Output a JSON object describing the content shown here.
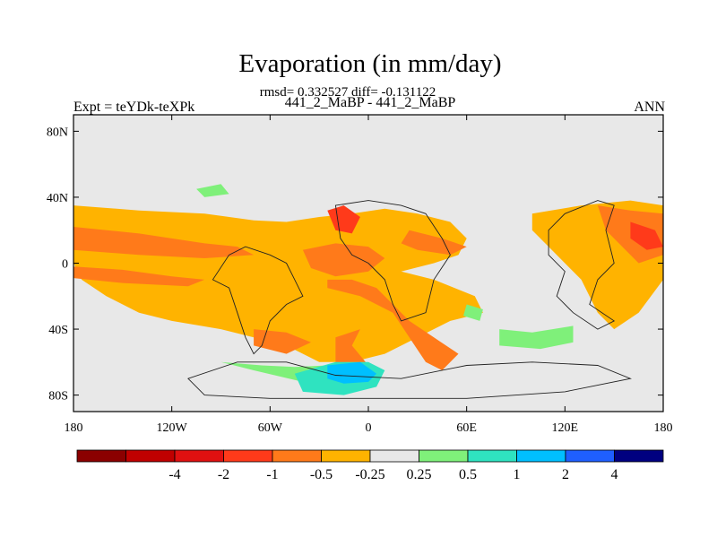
{
  "header": {
    "title": "Evaporation (in mm/day)",
    "stats": "rmsd= 0.332527 diff= -0.131122",
    "cases": "441_2_MaBP - 441_2_MaBP",
    "expt": "Expt = teYDk-teXPk",
    "season": "ANN"
  },
  "chart_data": {
    "type": "heatmap",
    "title": "Evaporation (in mm/day)",
    "xlim": [
      -180,
      180
    ],
    "ylim": [
      -90,
      90
    ],
    "x_ticks": [
      {
        "value": -180,
        "label": "180"
      },
      {
        "value": -120,
        "label": "120W"
      },
      {
        "value": -60,
        "label": "60W"
      },
      {
        "value": 0,
        "label": "0"
      },
      {
        "value": 60,
        "label": "60E"
      },
      {
        "value": 120,
        "label": "120E"
      },
      {
        "value": 180,
        "label": "180"
      }
    ],
    "y_ticks": [
      {
        "value": 80,
        "label": "80N"
      },
      {
        "value": 40,
        "label": "40N"
      },
      {
        "value": 0,
        "label": "0"
      },
      {
        "value": -40,
        "label": "40S"
      },
      {
        "value": -80,
        "label": "80S"
      }
    ],
    "colorbar": {
      "colors": [
        "#8b0000",
        "#c00000",
        "#e01010",
        "#ff3a1a",
        "#ff7a1a",
        "#ffb300",
        "#e8e8e8",
        "#7ff07a",
        "#2fe3c0",
        "#00bfff",
        "#1f5fff",
        "#000080"
      ],
      "labels": [
        "-4",
        "-2",
        "-1",
        "-0.5",
        "-0.25",
        "0.25",
        "0.5",
        "1",
        "2",
        "4"
      ]
    },
    "regions": [
      {
        "level": "-0.25",
        "color": "#ffb300",
        "points": [
          [
            -180,
            35
          ],
          [
            -140,
            32
          ],
          [
            -100,
            30
          ],
          [
            -70,
            26
          ],
          [
            -50,
            25
          ],
          [
            -30,
            28
          ],
          [
            -10,
            30
          ],
          [
            10,
            33
          ],
          [
            30,
            30
          ],
          [
            50,
            25
          ],
          [
            60,
            15
          ],
          [
            55,
            5
          ],
          [
            40,
            0
          ],
          [
            20,
            -5
          ],
          [
            40,
            -10
          ],
          [
            65,
            -20
          ],
          [
            70,
            -30
          ],
          [
            50,
            -35
          ],
          [
            30,
            -45
          ],
          [
            10,
            -55
          ],
          [
            -10,
            -60
          ],
          [
            -30,
            -60
          ],
          [
            -50,
            -50
          ],
          [
            -70,
            -45
          ],
          [
            -90,
            -40
          ],
          [
            -120,
            -35
          ],
          [
            -140,
            -30
          ],
          [
            -160,
            -20
          ],
          [
            -175,
            -10
          ],
          [
            -180,
            0
          ]
        ]
      },
      {
        "level": "-0.25",
        "color": "#ffb300",
        "points": [
          [
            100,
            30
          ],
          [
            130,
            35
          ],
          [
            160,
            38
          ],
          [
            180,
            35
          ],
          [
            180,
            -10
          ],
          [
            165,
            -30
          ],
          [
            150,
            -40
          ],
          [
            140,
            -30
          ],
          [
            130,
            -10
          ],
          [
            120,
            0
          ],
          [
            110,
            10
          ],
          [
            100,
            20
          ]
        ]
      },
      {
        "level": "-0.5",
        "color": "#ff7a1a",
        "points": [
          [
            -180,
            22
          ],
          [
            -140,
            18
          ],
          [
            -100,
            12
          ],
          [
            -80,
            10
          ],
          [
            -70,
            5
          ],
          [
            -100,
            3
          ],
          [
            -140,
            5
          ],
          [
            -180,
            8
          ]
        ]
      },
      {
        "level": "-0.5",
        "color": "#ff7a1a",
        "points": [
          [
            -180,
            -2
          ],
          [
            -150,
            -4
          ],
          [
            -120,
            -8
          ],
          [
            -100,
            -10
          ],
          [
            -110,
            -14
          ],
          [
            -150,
            -12
          ],
          [
            -180,
            -9
          ]
        ]
      },
      {
        "level": "-0.5",
        "color": "#ff7a1a",
        "points": [
          [
            -40,
            8
          ],
          [
            -20,
            12
          ],
          [
            0,
            10
          ],
          [
            10,
            3
          ],
          [
            0,
            -5
          ],
          [
            -20,
            -8
          ],
          [
            -35,
            -3
          ]
        ]
      },
      {
        "level": "-0.5",
        "color": "#ff7a1a",
        "points": [
          [
            -70,
            -40
          ],
          [
            -50,
            -42
          ],
          [
            -35,
            -48
          ],
          [
            -50,
            -55
          ],
          [
            -70,
            -50
          ]
        ]
      },
      {
        "level": "-0.5",
        "color": "#ff7a1a",
        "points": [
          [
            -25,
            -15
          ],
          [
            -5,
            -20
          ],
          [
            15,
            -30
          ],
          [
            25,
            -45
          ],
          [
            35,
            -60
          ],
          [
            45,
            -65
          ],
          [
            55,
            -55
          ],
          [
            40,
            -45
          ],
          [
            25,
            -35
          ],
          [
            15,
            -25
          ],
          [
            5,
            -15
          ],
          [
            -10,
            -10
          ],
          [
            -25,
            -10
          ]
        ]
      },
      {
        "level": "-0.5",
        "color": "#ff7a1a",
        "points": [
          [
            -5,
            -40
          ],
          [
            -10,
            -50
          ],
          [
            0,
            -62
          ],
          [
            -10,
            -67
          ],
          [
            -20,
            -60
          ],
          [
            -20,
            -45
          ]
        ]
      },
      {
        "level": "-0.5",
        "color": "#ff7a1a",
        "points": [
          [
            25,
            20
          ],
          [
            45,
            15
          ],
          [
            60,
            10
          ],
          [
            50,
            5
          ],
          [
            30,
            8
          ],
          [
            20,
            12
          ]
        ]
      },
      {
        "level": "-0.5",
        "color": "#ff7a1a",
        "points": [
          [
            140,
            35
          ],
          [
            160,
            32
          ],
          [
            180,
            30
          ],
          [
            180,
            5
          ],
          [
            165,
            0
          ],
          [
            155,
            10
          ],
          [
            145,
            20
          ]
        ]
      },
      {
        "level": "-1",
        "color": "#ff3a1a",
        "points": [
          [
            -25,
            32
          ],
          [
            -15,
            35
          ],
          [
            -5,
            28
          ],
          [
            -10,
            18
          ],
          [
            -20,
            20
          ]
        ]
      },
      {
        "level": "-1",
        "color": "#ff3a1a",
        "points": [
          [
            160,
            25
          ],
          [
            175,
            20
          ],
          [
            180,
            10
          ],
          [
            170,
            8
          ],
          [
            160,
            15
          ]
        ]
      },
      {
        "level": "0.25",
        "color": "#7ff07a",
        "points": [
          [
            -90,
            -60
          ],
          [
            -70,
            -65
          ],
          [
            -40,
            -72
          ],
          [
            -20,
            -70
          ],
          [
            0,
            -72
          ],
          [
            -5,
            -65
          ],
          [
            -25,
            -62
          ],
          [
            -45,
            -63
          ],
          [
            -65,
            -62
          ]
        ]
      },
      {
        "level": "0.25",
        "color": "#7ff07a",
        "points": [
          [
            80,
            -40
          ],
          [
            100,
            -42
          ],
          [
            125,
            -38
          ],
          [
            125,
            -48
          ],
          [
            105,
            -52
          ],
          [
            80,
            -50
          ]
        ]
      },
      {
        "level": "0.25",
        "color": "#7ff07a",
        "points": [
          [
            -105,
            45
          ],
          [
            -90,
            48
          ],
          [
            -85,
            42
          ],
          [
            -100,
            40
          ]
        ]
      },
      {
        "level": "0.25",
        "color": "#7ff07a",
        "points": [
          [
            60,
            -25
          ],
          [
            70,
            -28
          ],
          [
            68,
            -35
          ],
          [
            58,
            -32
          ]
        ]
      },
      {
        "level": "0.5",
        "color": "#2fe3c0",
        "points": [
          [
            -45,
            -67
          ],
          [
            -20,
            -60
          ],
          [
            0,
            -60
          ],
          [
            10,
            -65
          ],
          [
            5,
            -75
          ],
          [
            -15,
            -80
          ],
          [
            -40,
            -78
          ]
        ]
      },
      {
        "level": "1",
        "color": "#00bfff",
        "points": [
          [
            -25,
            -62
          ],
          [
            -5,
            -60
          ],
          [
            5,
            -67
          ],
          [
            0,
            -72
          ],
          [
            -15,
            -73
          ],
          [
            -25,
            -70
          ]
        ]
      }
    ],
    "land_outlines": [
      [
        [
          -95,
          -10
        ],
        [
          -85,
          -15
        ],
        [
          -80,
          -30
        ],
        [
          -75,
          -45
        ],
        [
          -70,
          -55
        ],
        [
          -65,
          -50
        ],
        [
          -60,
          -35
        ],
        [
          -50,
          -25
        ],
        [
          -40,
          -20
        ],
        [
          -45,
          -10
        ],
        [
          -50,
          0
        ],
        [
          -60,
          5
        ],
        [
          -75,
          10
        ],
        [
          -85,
          5
        ]
      ],
      [
        [
          -20,
          35
        ],
        [
          0,
          38
        ],
        [
          20,
          35
        ],
        [
          35,
          30
        ],
        [
          45,
          15
        ],
        [
          50,
          5
        ],
        [
          40,
          -10
        ],
        [
          35,
          -30
        ],
        [
          20,
          -35
        ],
        [
          15,
          -25
        ],
        [
          10,
          -10
        ],
        [
          0,
          0
        ],
        [
          -10,
          5
        ],
        [
          -17,
          15
        ]
      ],
      [
        [
          -50,
          -60
        ],
        [
          -20,
          -68
        ],
        [
          20,
          -70
        ],
        [
          60,
          -62
        ],
        [
          100,
          -60
        ],
        [
          140,
          -62
        ],
        [
          160,
          -70
        ],
        [
          120,
          -78
        ],
        [
          60,
          -82
        ],
        [
          0,
          -82
        ],
        [
          -60,
          -82
        ],
        [
          -100,
          -80
        ],
        [
          -110,
          -70
        ],
        [
          -80,
          -60
        ]
      ],
      [
        [
          110,
          20
        ],
        [
          120,
          30
        ],
        [
          140,
          38
        ],
        [
          150,
          35
        ],
        [
          145,
          20
        ],
        [
          150,
          0
        ],
        [
          140,
          -10
        ],
        [
          135,
          -25
        ],
        [
          150,
          -35
        ],
        [
          140,
          -40
        ],
        [
          125,
          -30
        ],
        [
          115,
          -20
        ],
        [
          120,
          -5
        ],
        [
          110,
          5
        ]
      ]
    ]
  }
}
